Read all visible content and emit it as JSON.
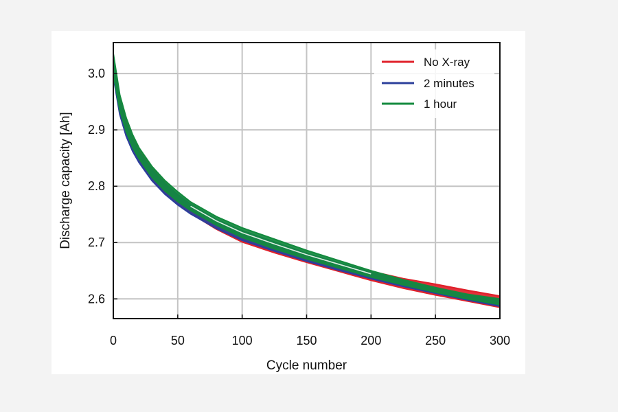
{
  "chart_data": {
    "type": "line",
    "title": "",
    "xlabel": "Cycle number",
    "ylabel": "Discharge capacity [Ah]",
    "xlim": [
      0,
      300
    ],
    "ylim": [
      2.565,
      3.055
    ],
    "xticks": [
      0,
      50,
      100,
      150,
      200,
      250,
      300
    ],
    "xtick_labels": [
      "0",
      "50",
      "100",
      "150",
      "200",
      "250",
      "300"
    ],
    "yticks": [
      2.6,
      2.7,
      2.8,
      2.9,
      3.0
    ],
    "ytick_labels": [
      "2.6",
      "2.7",
      "2.8",
      "2.9",
      "3.0"
    ],
    "grid": true,
    "legend_position": "top-right",
    "series": [
      {
        "name": "No X-ray",
        "color": "#e0202a",
        "band_x": [
          0,
          5,
          10,
          15,
          20,
          30,
          40,
          50,
          60,
          80,
          100,
          125,
          150,
          175,
          200,
          225,
          250,
          275,
          300
        ],
        "band_upper": [
          3.03,
          2.955,
          2.915,
          2.886,
          2.863,
          2.831,
          2.806,
          2.785,
          2.768,
          2.741,
          2.72,
          2.699,
          2.68,
          2.662,
          2.649,
          2.636,
          2.626,
          2.615,
          2.605
        ],
        "band_lower": [
          3.0,
          2.935,
          2.895,
          2.867,
          2.846,
          2.812,
          2.788,
          2.769,
          2.752,
          2.724,
          2.701,
          2.682,
          2.665,
          2.649,
          2.633,
          2.619,
          2.607,
          2.596,
          2.585
        ]
      },
      {
        "name": "2 minutes",
        "color": "#2c3f9b",
        "band_x": [
          0,
          5,
          10,
          15,
          20,
          30,
          40,
          50,
          60,
          80,
          100,
          125,
          150,
          175,
          200,
          225,
          250,
          275,
          300
        ],
        "band_upper": [
          3.025,
          2.95,
          2.91,
          2.882,
          2.86,
          2.829,
          2.805,
          2.785,
          2.768,
          2.741,
          2.721,
          2.701,
          2.681,
          2.664,
          2.647,
          2.633,
          2.62,
          2.607,
          2.597
        ],
        "band_lower": [
          2.995,
          2.928,
          2.889,
          2.862,
          2.842,
          2.81,
          2.786,
          2.767,
          2.751,
          2.725,
          2.704,
          2.685,
          2.667,
          2.651,
          2.636,
          2.622,
          2.61,
          2.598,
          2.587
        ]
      },
      {
        "name": "1 hour",
        "color": "#138a3e",
        "band_x": [
          0,
          5,
          10,
          15,
          20,
          30,
          40,
          50,
          60,
          80,
          100,
          125,
          150,
          175,
          200,
          225,
          250,
          275,
          300
        ],
        "band_upper": [
          3.035,
          2.962,
          2.921,
          2.891,
          2.868,
          2.835,
          2.81,
          2.79,
          2.772,
          2.746,
          2.726,
          2.706,
          2.686,
          2.668,
          2.65,
          2.634,
          2.62,
          2.608,
          2.6
        ],
        "band_lower": [
          3.0,
          2.936,
          2.897,
          2.869,
          2.849,
          2.816,
          2.792,
          2.773,
          2.757,
          2.731,
          2.709,
          2.689,
          2.671,
          2.655,
          2.639,
          2.625,
          2.612,
          2.6,
          2.59
        ]
      }
    ]
  }
}
